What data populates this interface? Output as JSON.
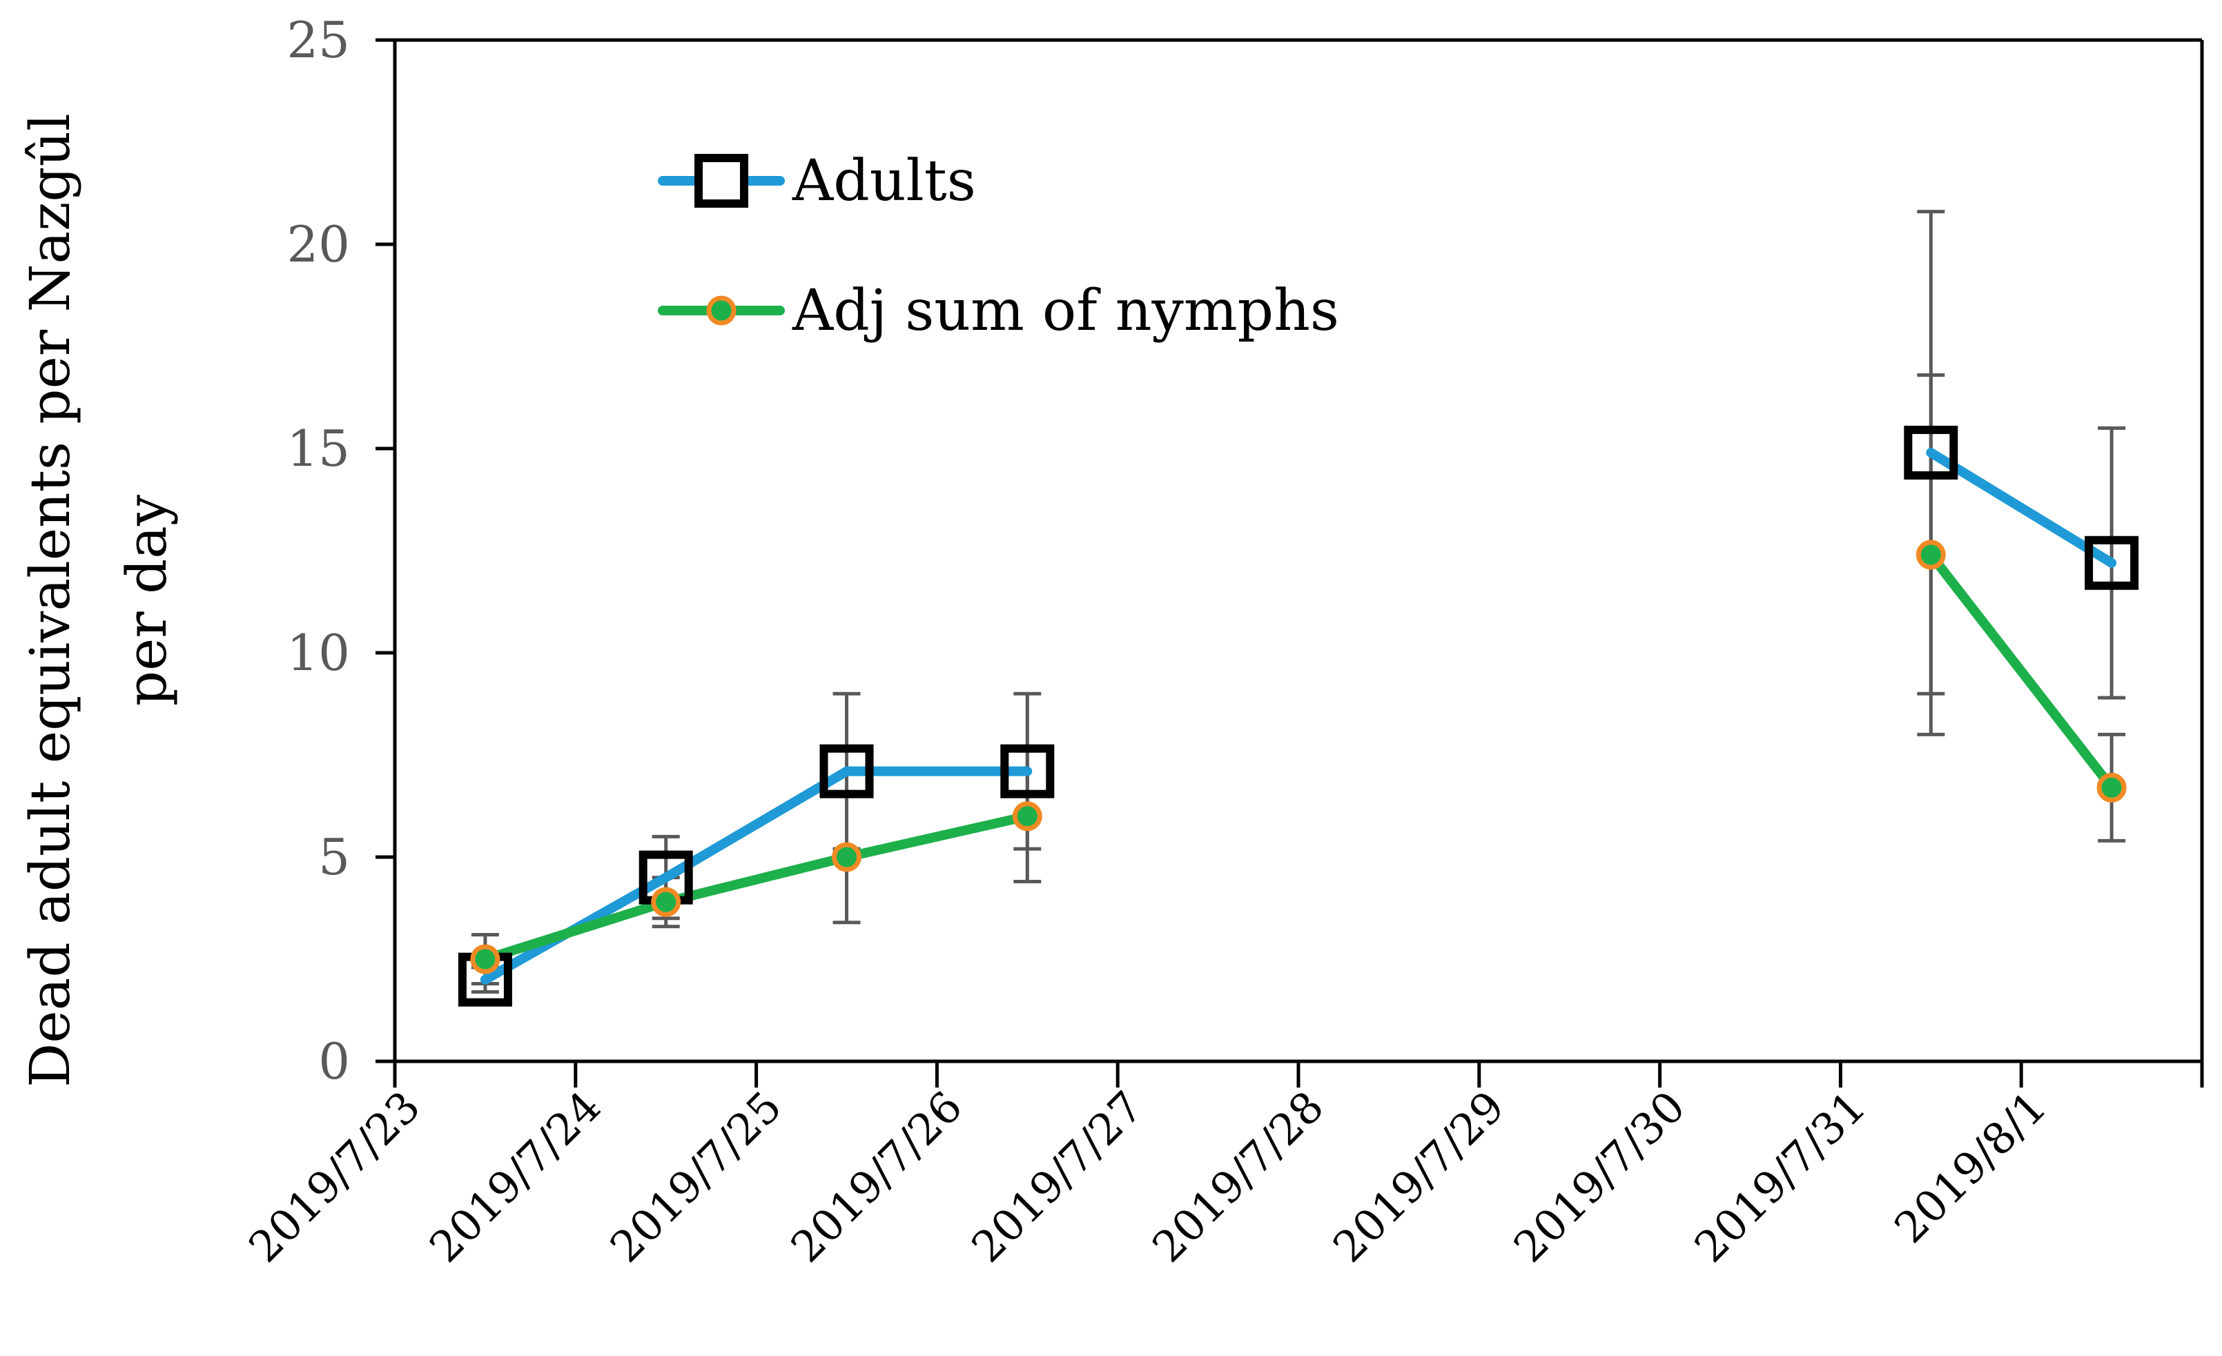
{
  "chart_data": {
    "type": "line",
    "title": "",
    "xlabel": "",
    "ylabel": "Dead adult equivalents per Nazgûl per day",
    "ylabel_lines": [
      "Dead adult equivalents per Nazgûl",
      "per day"
    ],
    "ylim": [
      0,
      25
    ],
    "y_ticks": [
      "0",
      "5",
      "10",
      "15",
      "20",
      "25"
    ],
    "categories": [
      "2019/7/23",
      "2019/7/24",
      "2019/7/25",
      "2019/7/26",
      "2019/7/27",
      "2019/7/28",
      "2019/7/29",
      "2019/7/30",
      "2019/7/31",
      "2019/8/1"
    ],
    "grid": false,
    "legend_position": "top-left",
    "series": [
      {
        "name": "Adults",
        "color": "#1F9AD6",
        "marker": "square",
        "marker_edge": "#000000",
        "marker_fill": "#FFFFFF",
        "values": [
          2.0,
          4.5,
          7.1,
          7.1,
          null,
          null,
          null,
          null,
          14.9,
          12.2
        ],
        "error": [
          0.3,
          1.0,
          1.9,
          1.9,
          null,
          null,
          null,
          null,
          5.9,
          3.3
        ]
      },
      {
        "name": "Adj sum of nymphs",
        "color": "#1DB04A",
        "marker": "circle",
        "marker_edge": "#F08A24",
        "marker_fill": "#1DB04A",
        "values": [
          2.5,
          3.9,
          5.0,
          6.0,
          null,
          null,
          null,
          null,
          12.4,
          6.7
        ],
        "error": [
          0.6,
          0.6,
          1.6,
          1.6,
          null,
          null,
          null,
          null,
          4.4,
          1.3
        ]
      }
    ]
  }
}
